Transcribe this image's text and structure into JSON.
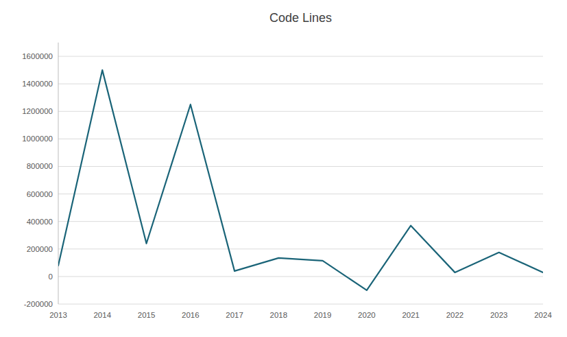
{
  "chart_data": {
    "type": "line",
    "title": "Code Lines",
    "x": [
      2013,
      2014,
      2015,
      2016,
      2017,
      2018,
      2019,
      2020,
      2021,
      2022,
      2023,
      2024
    ],
    "values": [
      80000,
      1500000,
      240000,
      1250000,
      40000,
      135000,
      115000,
      -100000,
      370000,
      30000,
      175000,
      30000
    ],
    "color": "#1a6478",
    "xlim": [
      2013,
      2024
    ],
    "xticks": [
      2013,
      2014,
      2015,
      2016,
      2017,
      2018,
      2019,
      2020,
      2021,
      2022,
      2023,
      2024
    ],
    "ylim": [
      -200000,
      1700000
    ],
    "yticks": [
      -200000,
      0,
      200000,
      400000,
      600000,
      800000,
      1000000,
      1200000,
      1400000,
      1600000
    ],
    "grid": true
  }
}
